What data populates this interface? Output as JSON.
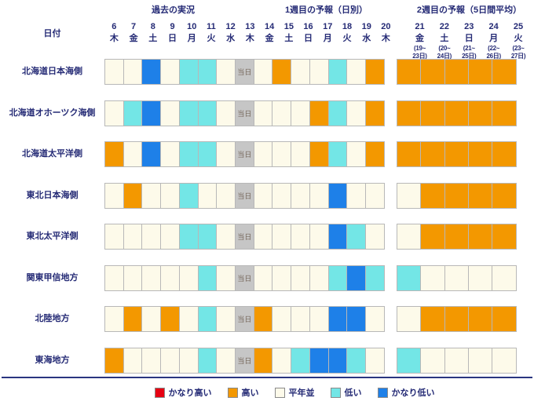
{
  "header": {
    "past_label": "過去の実況",
    "week1_label": "1週目の予報（日別）",
    "week2_label": "2週目の予報（5日間平均）",
    "date_label": "日付",
    "today_label": "当日"
  },
  "chart_data": {
    "type": "heatmap",
    "sections": [
      "過去の実況",
      "1週目の予報（日別）",
      "2週目の予報（5日間平均）"
    ],
    "category_scale": [
      "かなり高い",
      "高い",
      "平年並",
      "低い",
      "かなり低い"
    ],
    "columns": [
      {
        "day": "6",
        "weekday": "木"
      },
      {
        "day": "7",
        "weekday": "金"
      },
      {
        "day": "8",
        "weekday": "土"
      },
      {
        "day": "9",
        "weekday": "日"
      },
      {
        "day": "10",
        "weekday": "月"
      },
      {
        "day": "11",
        "weekday": "火"
      },
      {
        "day": "12",
        "weekday": "水"
      },
      {
        "day": "13",
        "weekday": "木"
      },
      {
        "day": "14",
        "weekday": "金"
      },
      {
        "day": "15",
        "weekday": "土"
      },
      {
        "day": "16",
        "weekday": "日"
      },
      {
        "day": "17",
        "weekday": "月"
      },
      {
        "day": "18",
        "weekday": "火"
      },
      {
        "day": "19",
        "weekday": "水"
      },
      {
        "day": "20",
        "weekday": "木"
      }
    ],
    "week2_columns": [
      {
        "day": "21",
        "weekday": "金",
        "period": "(19~23日)"
      },
      {
        "day": "22",
        "weekday": "土",
        "period": "(20~24日)"
      },
      {
        "day": "23",
        "weekday": "日",
        "period": "(21~25日)"
      },
      {
        "day": "24",
        "weekday": "月",
        "period": "(22~26日)"
      },
      {
        "day": "25",
        "weekday": "火",
        "period": "(23~27日)"
      }
    ],
    "rows": [
      {
        "region": "北海道日本海側",
        "daily": [
          "normal",
          "normal",
          "very_low",
          "normal",
          "low",
          "low",
          "normal",
          "today",
          "normal",
          "high",
          "normal",
          "normal",
          "low",
          "normal",
          "high"
        ],
        "week2": [
          "high",
          "high",
          "high",
          "high",
          "high"
        ]
      },
      {
        "region": "北海道オホーツク海側",
        "daily": [
          "normal",
          "low",
          "very_low",
          "normal",
          "low",
          "low",
          "normal",
          "today",
          "normal",
          "normal",
          "normal",
          "high",
          "low",
          "normal",
          "high"
        ],
        "week2": [
          "high",
          "high",
          "high",
          "high",
          "high"
        ]
      },
      {
        "region": "北海道太平洋側",
        "daily": [
          "high",
          "normal",
          "very_low",
          "normal",
          "low",
          "low",
          "normal",
          "today",
          "normal",
          "normal",
          "normal",
          "high",
          "low",
          "normal",
          "high"
        ],
        "week2": [
          "high",
          "high",
          "high",
          "high",
          "high"
        ]
      },
      {
        "region": "東北日本海側",
        "daily": [
          "normal",
          "high",
          "normal",
          "normal",
          "low",
          "normal",
          "normal",
          "today",
          "normal",
          "normal",
          "normal",
          "normal",
          "very_low",
          "normal",
          "normal"
        ],
        "week2": [
          "normal",
          "high",
          "high",
          "high",
          "high"
        ]
      },
      {
        "region": "東北太平洋側",
        "daily": [
          "normal",
          "normal",
          "normal",
          "normal",
          "low",
          "low",
          "normal",
          "today",
          "normal",
          "normal",
          "normal",
          "normal",
          "very_low",
          "low",
          "normal"
        ],
        "week2": [
          "normal",
          "high",
          "high",
          "high",
          "high"
        ]
      },
      {
        "region": "関東甲信地方",
        "daily": [
          "normal",
          "normal",
          "normal",
          "normal",
          "normal",
          "low",
          "normal",
          "today",
          "normal",
          "normal",
          "normal",
          "normal",
          "low",
          "very_low",
          "low"
        ],
        "week2": [
          "low",
          "normal",
          "normal",
          "normal",
          "normal"
        ]
      },
      {
        "region": "北陸地方",
        "daily": [
          "normal",
          "high",
          "normal",
          "high",
          "normal",
          "low",
          "normal",
          "today",
          "high",
          "normal",
          "normal",
          "normal",
          "very_low",
          "very_low",
          "normal"
        ],
        "week2": [
          "normal",
          "high",
          "high",
          "high",
          "high"
        ]
      },
      {
        "region": "東海地方",
        "daily": [
          "high",
          "normal",
          "normal",
          "normal",
          "normal",
          "low",
          "normal",
          "today",
          "high",
          "normal",
          "low",
          "very_low",
          "very_low",
          "low",
          "normal"
        ],
        "week2": [
          "low",
          "normal",
          "normal",
          "normal",
          "normal"
        ]
      }
    ]
  },
  "legend": [
    {
      "label": "かなり高い",
      "state": "very_high"
    },
    {
      "label": "高い",
      "state": "high"
    },
    {
      "label": "平年並",
      "state": "normal"
    },
    {
      "label": "低い",
      "state": "low"
    },
    {
      "label": "かなり低い",
      "state": "very_low"
    }
  ],
  "colors": {
    "very_high": "#E60012",
    "high": "#F39800",
    "normal": "#FDFAEA",
    "low": "#73E6E6",
    "very_low": "#1E80E8",
    "today_bg": "#C6C6C6",
    "today_text": "#75675B",
    "text": "#242A75"
  }
}
